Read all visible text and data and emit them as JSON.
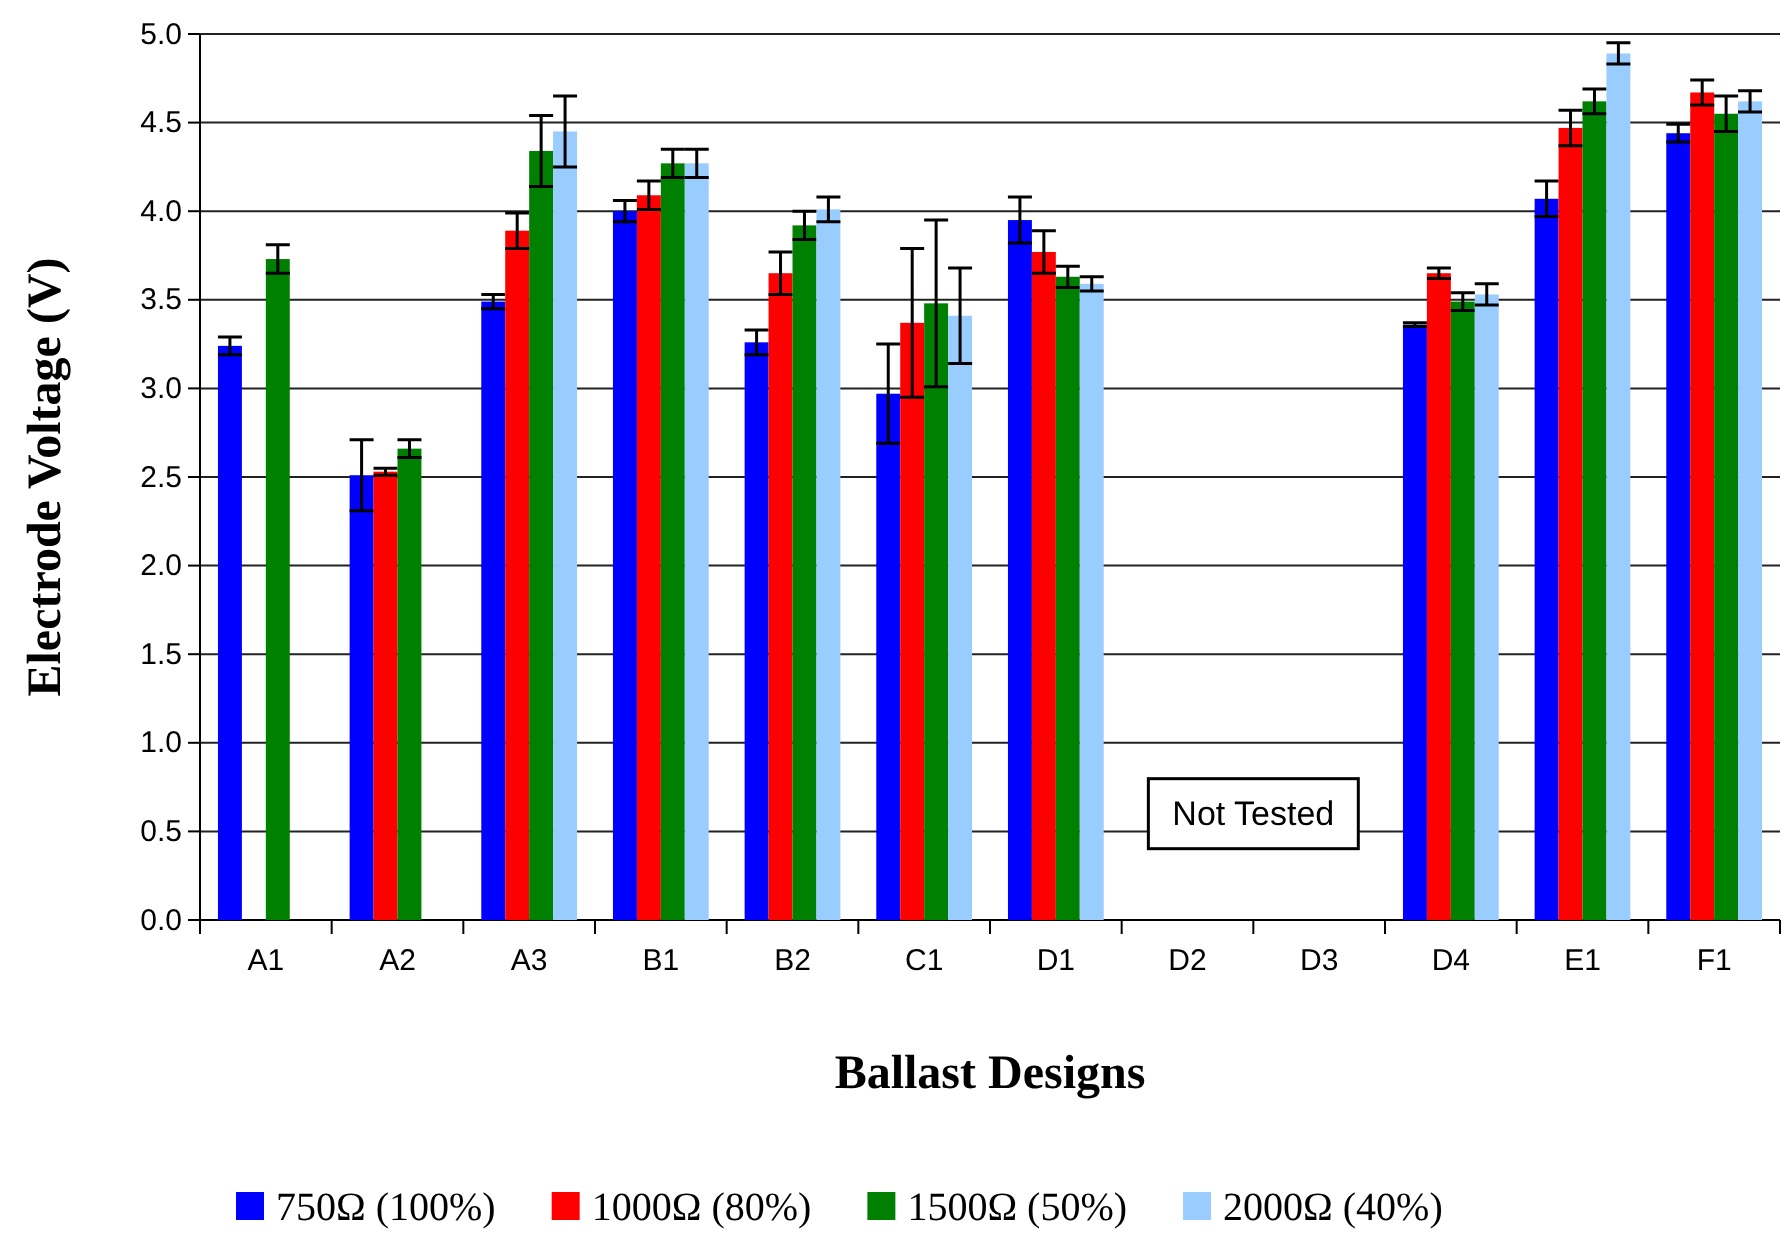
{
  "chart_data": {
    "type": "bar",
    "xlabel": "Ballast Designs",
    "ylabel": "Electrode Voltage (V)",
    "categories": [
      "A1",
      "A2",
      "A3",
      "B1",
      "B2",
      "C1",
      "D1",
      "D2",
      "D3",
      "D4",
      "E1",
      "F1"
    ],
    "series": [
      {
        "name": "750Ω (100%)",
        "color": "#0000ff",
        "values": [
          3.24,
          2.51,
          3.49,
          4.0,
          3.26,
          2.97,
          3.95,
          null,
          null,
          3.36,
          4.07,
          4.44
        ],
        "errors": [
          0.05,
          0.2,
          0.04,
          0.06,
          0.07,
          0.28,
          0.13,
          null,
          null,
          0.01,
          0.1,
          0.05
        ]
      },
      {
        "name": "1000Ω (80%)",
        "color": "#ff0000",
        "values": [
          null,
          2.53,
          3.89,
          4.09,
          3.65,
          3.37,
          3.77,
          null,
          null,
          3.65,
          4.47,
          4.67
        ],
        "errors": [
          null,
          0.02,
          0.1,
          0.08,
          0.12,
          0.42,
          0.12,
          null,
          null,
          0.03,
          0.1,
          0.07
        ]
      },
      {
        "name": "1500Ω (50%)",
        "color": "#008000",
        "values": [
          3.73,
          2.66,
          4.34,
          4.27,
          3.92,
          3.48,
          3.63,
          null,
          null,
          3.49,
          4.62,
          4.55
        ],
        "errors": [
          0.08,
          0.05,
          0.2,
          0.08,
          0.08,
          0.47,
          0.06,
          null,
          null,
          0.05,
          0.07,
          0.1
        ]
      },
      {
        "name": "2000Ω (40%)",
        "color": "#99ccff",
        "values": [
          null,
          null,
          4.45,
          4.27,
          4.01,
          3.41,
          3.59,
          null,
          null,
          3.53,
          4.89,
          4.62
        ],
        "errors": [
          null,
          null,
          0.2,
          0.08,
          0.07,
          0.27,
          0.04,
          null,
          null,
          0.06,
          0.06,
          0.06
        ]
      }
    ],
    "ylim": [
      0,
      5
    ],
    "yticks": [
      {
        "value": 0,
        "label": "0.0"
      },
      {
        "value": 0.5,
        "label": "0.5"
      },
      {
        "value": 1,
        "label": "1.0"
      },
      {
        "value": 1.5,
        "label": "1.5"
      },
      {
        "value": 2,
        "label": "2.0"
      },
      {
        "value": 2.5,
        "label": "2.5"
      },
      {
        "value": 3,
        "label": "3.0"
      },
      {
        "value": 3.5,
        "label": "3.5"
      },
      {
        "value": 4,
        "label": "4.0"
      },
      {
        "value": 4.5,
        "label": "4.5"
      },
      {
        "value": 5,
        "label": "5.0"
      }
    ],
    "grid": "y",
    "legend": "bottom",
    "annotations": [
      "Not Tested"
    ]
  }
}
